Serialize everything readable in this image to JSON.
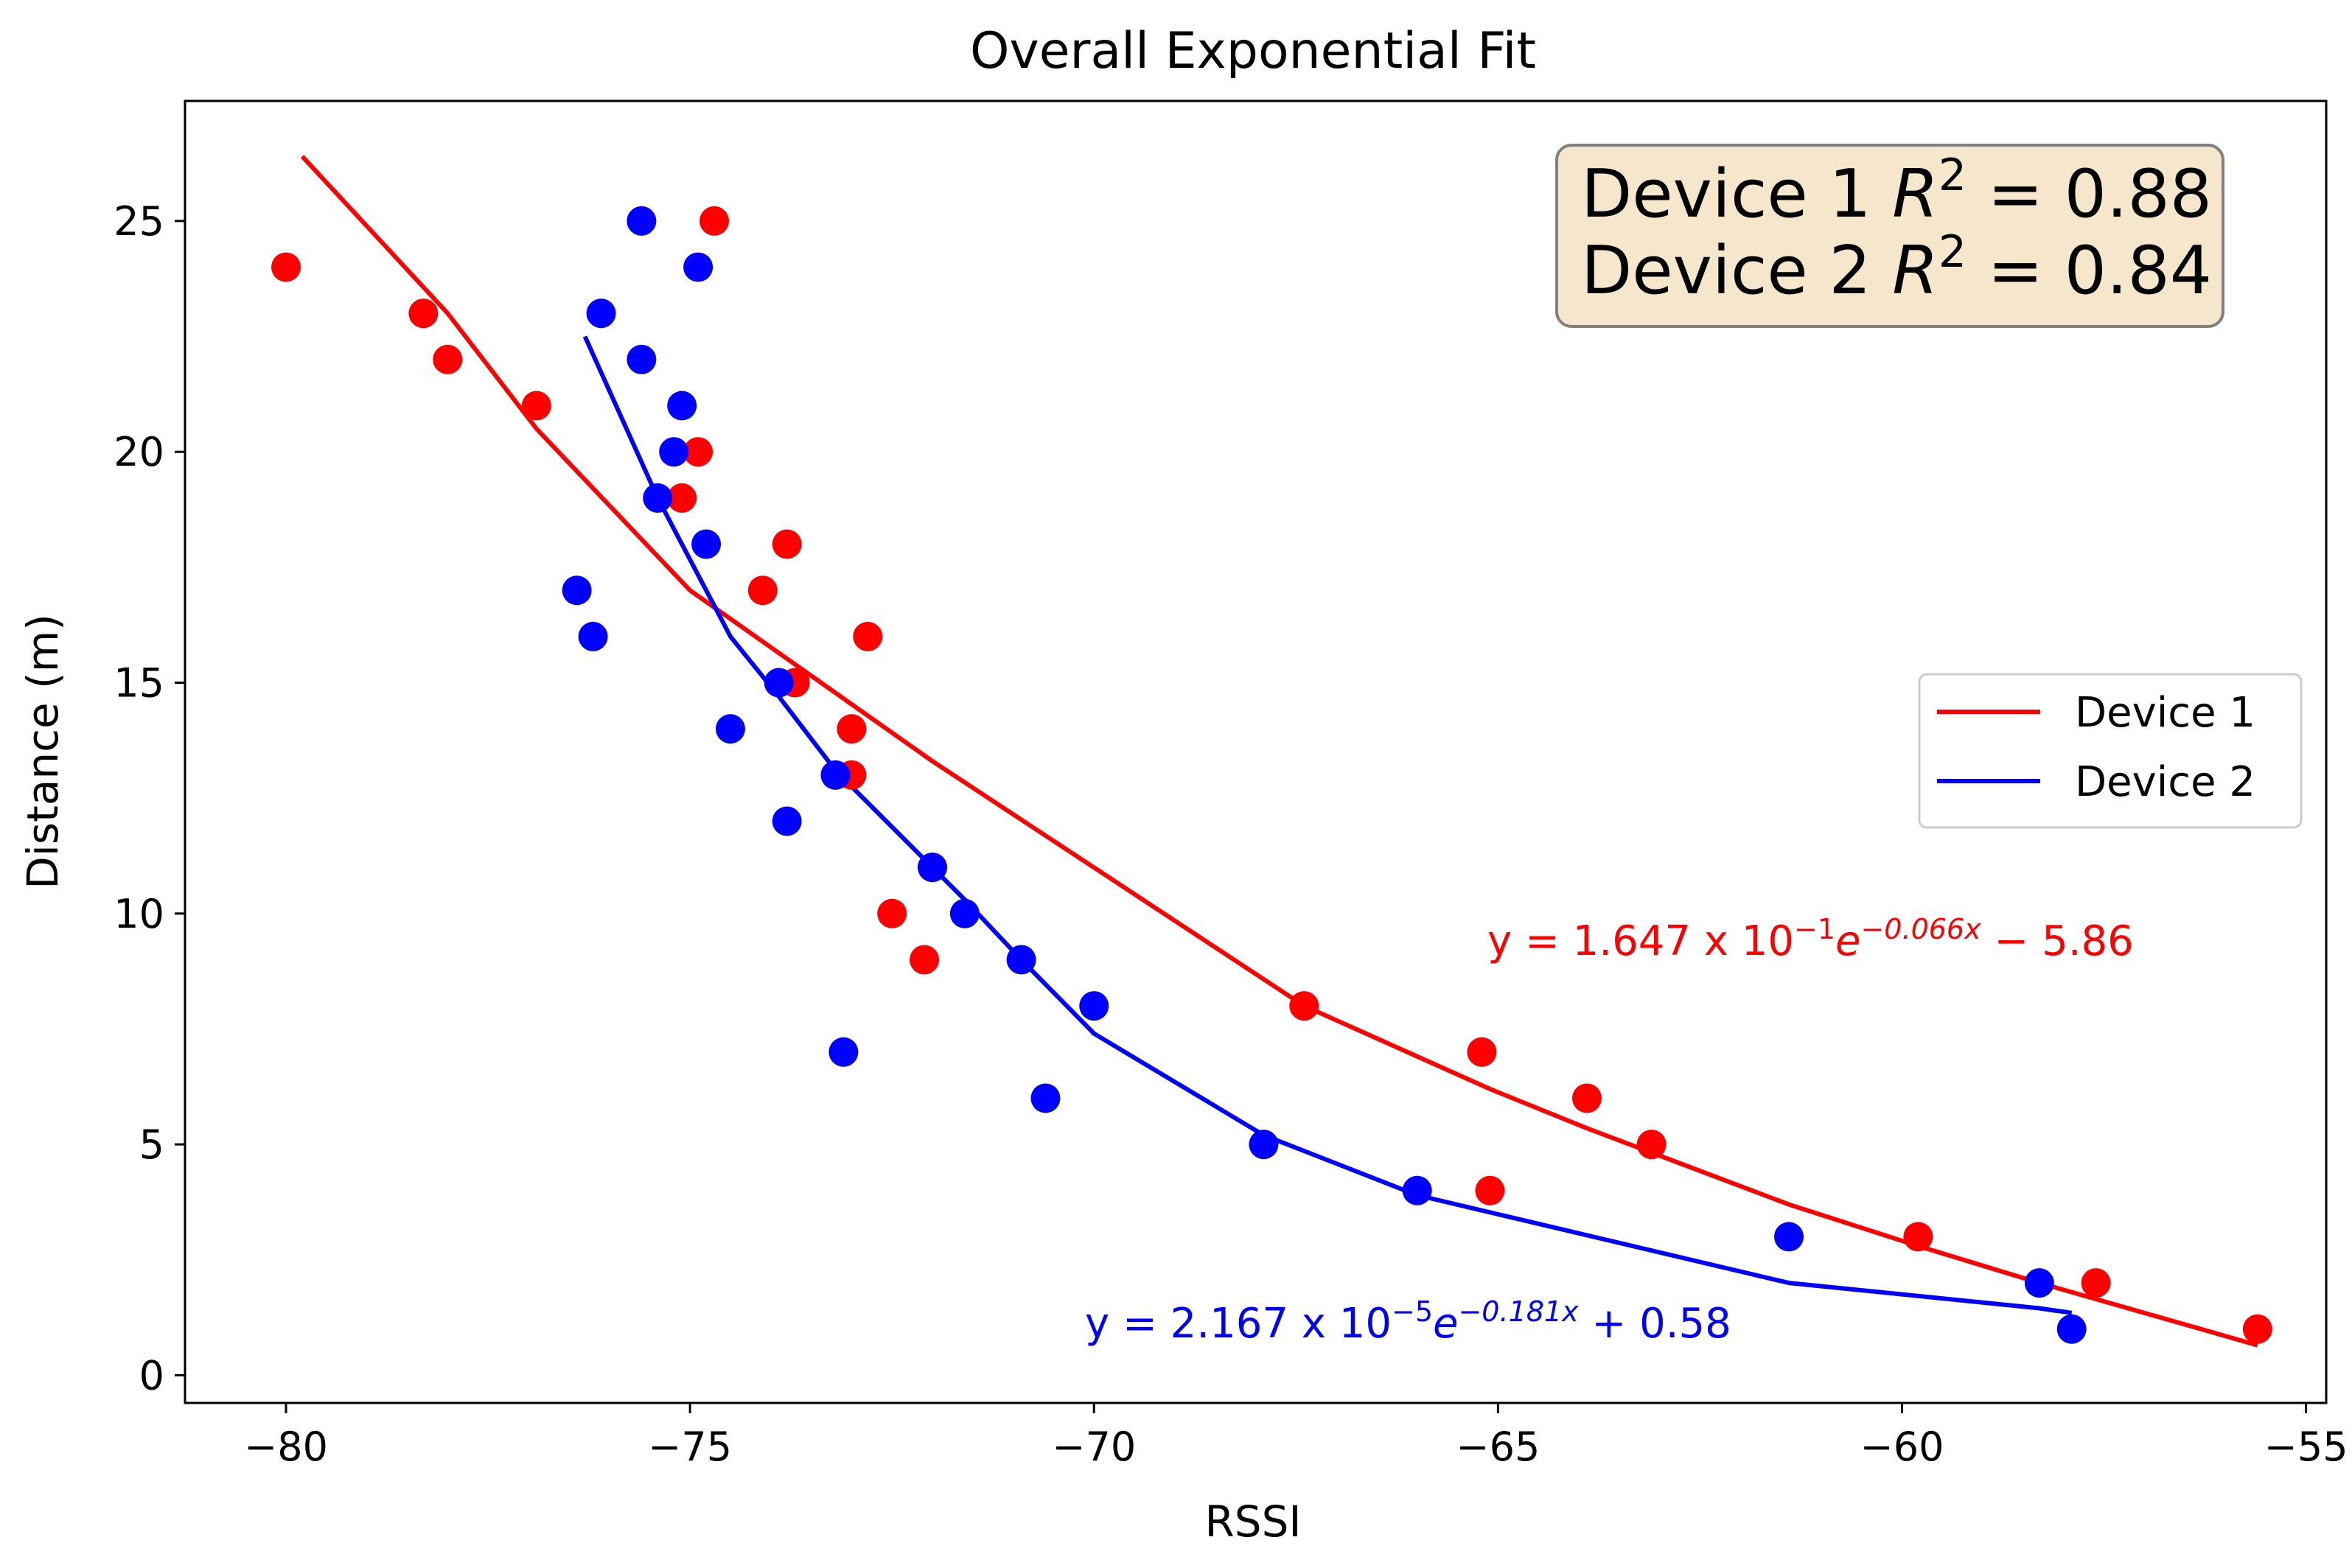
{
  "chart_data": {
    "type": "scatter",
    "title": "Overall Exponential Fit",
    "xlabel": "RSSI",
    "ylabel": "Distance (m)",
    "xlim": [
      -81.25,
      -54.75
    ],
    "ylim": [
      -0.6,
      27.6
    ],
    "xticks": [
      -80,
      -75,
      -70,
      -65,
      -60,
      -55
    ],
    "xtick_labels": [
      "−80",
      "−75",
      "−70",
      "−65",
      "−60",
      "−55"
    ],
    "yticks": [
      0,
      5,
      10,
      15,
      20,
      25
    ],
    "ytick_labels": [
      "0",
      "5",
      "10",
      "15",
      "20",
      "25"
    ],
    "grid": false,
    "legend_position": "center-right",
    "series": [
      {
        "name": "Device 1",
        "color": "#ff0000",
        "points": [
          {
            "x": -80.0,
            "y": 24
          },
          {
            "x": -78.3,
            "y": 23
          },
          {
            "x": -78.0,
            "y": 22
          },
          {
            "x": -76.9,
            "y": 21
          },
          {
            "x": -74.7,
            "y": 25
          },
          {
            "x": -74.9,
            "y": 20
          },
          {
            "x": -75.1,
            "y": 19
          },
          {
            "x": -73.8,
            "y": 18
          },
          {
            "x": -74.1,
            "y": 17
          },
          {
            "x": -72.8,
            "y": 16
          },
          {
            "x": -73.7,
            "y": 15
          },
          {
            "x": -73.0,
            "y": 14
          },
          {
            "x": -73.0,
            "y": 13
          },
          {
            "x": -72.0,
            "y": 11
          },
          {
            "x": -72.5,
            "y": 10
          },
          {
            "x": -72.1,
            "y": 9
          },
          {
            "x": -67.4,
            "y": 8
          },
          {
            "x": -65.2,
            "y": 7
          },
          {
            "x": -63.9,
            "y": 6
          },
          {
            "x": -63.1,
            "y": 5
          },
          {
            "x": -65.1,
            "y": 4
          },
          {
            "x": -59.8,
            "y": 3
          },
          {
            "x": -57.6,
            "y": 2
          },
          {
            "x": -55.6,
            "y": 1
          }
        ],
        "fit": {
          "x": [
            -79.8,
            -78.0,
            -76.9,
            -75.0,
            -72.0,
            -67.4,
            -65.1,
            -63.9,
            -61.4,
            -59.8,
            -58.3,
            -55.6
          ],
          "y": [
            26.4,
            23.0,
            20.5,
            17.0,
            13.3,
            8.0,
            6.2,
            5.35,
            3.7,
            2.8,
            2.0,
            0.65
          ]
        },
        "equation": {
          "prefix": "y = 1.647 x 10",
          "exp": "−1",
          "base": "e",
          "exp2": "−0.066x",
          "suffix": " − 5.86"
        },
        "r2": "0.88"
      },
      {
        "name": "Device 2",
        "color": "#0000ff",
        "points": [
          {
            "x": -75.6,
            "y": 25
          },
          {
            "x": -74.9,
            "y": 24
          },
          {
            "x": -76.1,
            "y": 23
          },
          {
            "x": -75.6,
            "y": 22
          },
          {
            "x": -75.1,
            "y": 21
          },
          {
            "x": -75.2,
            "y": 20
          },
          {
            "x": -75.4,
            "y": 19
          },
          {
            "x": -74.8,
            "y": 18
          },
          {
            "x": -76.4,
            "y": 17
          },
          {
            "x": -76.2,
            "y": 16
          },
          {
            "x": -73.9,
            "y": 15
          },
          {
            "x": -74.5,
            "y": 14
          },
          {
            "x": -73.2,
            "y": 13
          },
          {
            "x": -73.8,
            "y": 12
          },
          {
            "x": -72.0,
            "y": 11
          },
          {
            "x": -71.6,
            "y": 10
          },
          {
            "x": -70.9,
            "y": 9
          },
          {
            "x": -70.0,
            "y": 8
          },
          {
            "x": -73.1,
            "y": 7
          },
          {
            "x": -70.6,
            "y": 6
          },
          {
            "x": -67.9,
            "y": 5
          },
          {
            "x": -66.0,
            "y": 4
          },
          {
            "x": -61.4,
            "y": 3
          },
          {
            "x": -58.3,
            "y": 2
          },
          {
            "x": -57.9,
            "y": 1
          }
        ],
        "fit": {
          "x": [
            -76.3,
            -75.4,
            -74.5,
            -73.9,
            -73.2,
            -72.0,
            -71.6,
            -70.9,
            -70.0,
            -67.9,
            -66.0,
            -61.4,
            -58.3,
            -57.9
          ],
          "y": [
            22.5,
            19.0,
            16.0,
            14.7,
            13.1,
            11.0,
            10.3,
            9.0,
            7.4,
            5.2,
            3.9,
            2.0,
            1.45,
            1.35
          ]
        },
        "equation": {
          "prefix": "y = 2.167 x 10",
          "exp": "−5",
          "base": "e",
          "exp2": "−0.181x",
          "suffix": " + 0.58"
        },
        "r2": "0.84"
      }
    ],
    "r2_box": {
      "line1_prefix": "Device 1 ",
      "line2_prefix": "Device 2 ",
      "symbol": "R",
      "power": "2",
      "equals": " = ",
      "fill": "#f5e6cc",
      "edge": "#808080"
    }
  }
}
